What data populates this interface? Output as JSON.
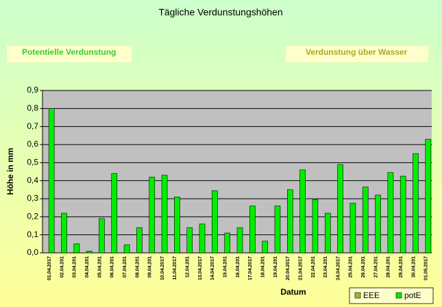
{
  "chart_data": {
    "type": "bar",
    "title": "Tägliche Verdunstungshöhen",
    "annotations": [
      "Potentielle Verdunstung",
      "Verdunstung über Wasser"
    ],
    "x_label": "Datum",
    "y_label": "Höhe in mm",
    "categories": [
      "01.04.2017",
      "02.04.201",
      "03.04.201",
      "04.04.201",
      "05.04.201",
      "06.04.201",
      "07.04.201",
      "08.04.201",
      "09.04.201",
      "10.04.2017",
      "11.04.2017",
      "12.04.201",
      "13.04.2017",
      "14.04.2017",
      "15.04.201",
      "16.04.201",
      "17.04.2017",
      "18.04.201",
      "19.04.201",
      "20.04.2017",
      "21.04.2017",
      "22.04.201",
      "23.04.201",
      "24.04.2017",
      "25.04.201",
      "26.04.201",
      "27.04.201",
      "28.04.201",
      "29.04.201",
      "30.04.201",
      "01.05.2017"
    ],
    "series": [
      {
        "name": "EEE",
        "color": "#99bb33",
        "values": [
          null,
          null,
          null,
          null,
          null,
          null,
          null,
          null,
          null,
          null,
          null,
          null,
          null,
          null,
          null,
          null,
          null,
          null,
          null,
          null,
          null,
          null,
          null,
          null,
          null,
          null,
          null,
          null,
          null,
          null,
          null
        ]
      },
      {
        "name": "potE",
        "color": "#00ee00",
        "values": [
          0.8,
          0.22,
          0.05,
          0.01,
          0.19,
          0.44,
          0.045,
          0.14,
          0.42,
          0.43,
          0.31,
          0.14,
          0.16,
          0.345,
          0.11,
          0.14,
          0.26,
          0.065,
          0.26,
          0.35,
          0.46,
          0.295,
          0.22,
          0.49,
          0.275,
          0.365,
          0.32,
          0.445,
          0.425,
          0.55,
          0.63
        ]
      }
    ],
    "ylim": [
      0,
      0.9
    ],
    "yticks": [
      {
        "value": 0,
        "label": "0,0"
      },
      {
        "value": 0.1,
        "label": "0,1"
      },
      {
        "value": 0.2,
        "label": "0,2"
      },
      {
        "value": 0.3,
        "label": "0,3"
      },
      {
        "value": 0.4,
        "label": "0,4"
      },
      {
        "value": 0.5,
        "label": "0,5"
      },
      {
        "value": 0.6,
        "label": "0,6"
      },
      {
        "value": 0.7,
        "label": "0,7"
      },
      {
        "value": 0.8,
        "label": "0,8"
      },
      {
        "value": 0.9,
        "label": "0,9"
      }
    ],
    "grid": true,
    "legend": "bottom-right"
  }
}
